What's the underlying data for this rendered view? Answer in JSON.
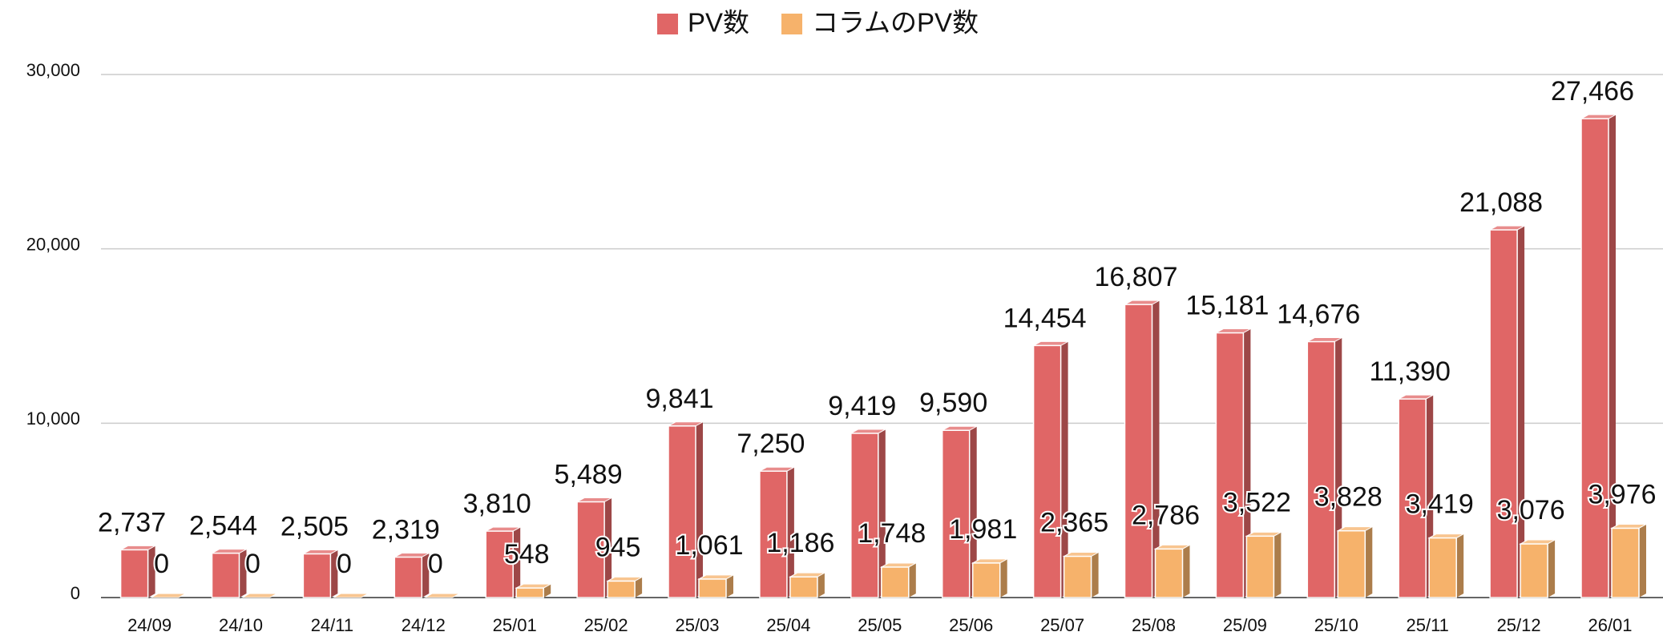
{
  "chart_data": {
    "type": "bar3d",
    "categories": [
      "24/09",
      "24/10",
      "24/11",
      "24/12",
      "25/01",
      "25/02",
      "25/03",
      "25/04",
      "25/05",
      "25/06",
      "25/07",
      "25/08",
      "25/09",
      "25/10",
      "25/11",
      "25/12",
      "26/01"
    ],
    "series": [
      {
        "name": "PV数",
        "color": "#e06666",
        "values": [
          2737,
          2544,
          2505,
          2319,
          3810,
          5489,
          9841,
          7250,
          9419,
          9590,
          14454,
          16807,
          15181,
          14676,
          11390,
          21088,
          27466
        ],
        "value_labels": [
          "2,737",
          "2,544",
          "2,505",
          "2,319",
          "3,810",
          "5,489",
          "9,841",
          "7,250",
          "9,419",
          "9,590",
          "14,454",
          "16,807",
          "15,181",
          "14,676",
          "11,390",
          "21,088",
          "27,466"
        ]
      },
      {
        "name": "コラムのPV数",
        "color": "#f6b26b",
        "values": [
          0,
          0,
          0,
          0,
          548,
          945,
          1061,
          1186,
          1748,
          1981,
          2365,
          2786,
          3522,
          3828,
          3419,
          3076,
          3976
        ],
        "value_labels": [
          "0",
          "0",
          "0",
          "0",
          "548",
          "945",
          "1,061",
          "1,186",
          "1,748",
          "1,981",
          "2,365",
          "2,786",
          "3,522",
          "3,828",
          "3,419",
          "3,076",
          "3,976"
        ]
      }
    ],
    "ylim": [
      0,
      30000
    ],
    "yticks": [
      0,
      {
        "value": 10000,
        "label": "10,000"
      },
      {
        "value": 20000,
        "label": "20,000"
      },
      {
        "value": 30000,
        "label": "30,000"
      }
    ],
    "grid": true,
    "legend": "top"
  }
}
